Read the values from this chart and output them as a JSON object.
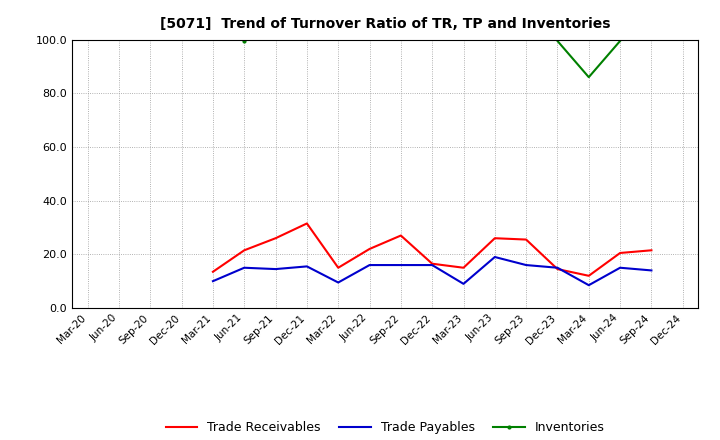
{
  "title": "[5071]  Trend of Turnover Ratio of TR, TP and Inventories",
  "xlabels": [
    "Mar-20",
    "Jun-20",
    "Sep-20",
    "Dec-20",
    "Mar-21",
    "Jun-21",
    "Sep-21",
    "Dec-21",
    "Mar-22",
    "Jun-22",
    "Sep-22",
    "Dec-22",
    "Mar-23",
    "Jun-23",
    "Sep-23",
    "Dec-23",
    "Mar-24",
    "Jun-24",
    "Sep-24",
    "Dec-24"
  ],
  "trade_receivables": [
    null,
    null,
    null,
    null,
    13.5,
    21.5,
    26.0,
    31.5,
    15.0,
    22.0,
    27.0,
    16.5,
    15.0,
    26.0,
    25.5,
    14.5,
    12.0,
    20.5,
    21.5,
    null
  ],
  "trade_payables": [
    null,
    null,
    null,
    null,
    10.0,
    15.0,
    14.5,
    15.5,
    9.5,
    16.0,
    16.0,
    16.0,
    9.0,
    19.0,
    16.0,
    15.0,
    8.5,
    15.0,
    14.0,
    null
  ],
  "inv_segments": [
    {
      "x": [
        5
      ],
      "y": [
        99.5
      ]
    },
    {
      "x": [
        15,
        16,
        17
      ],
      "y": [
        99.5,
        86.0,
        99.5
      ]
    }
  ],
  "ylim": [
    0,
    100
  ],
  "yticks": [
    0.0,
    20.0,
    40.0,
    60.0,
    80.0,
    100.0
  ],
  "color_tr": "#ff0000",
  "color_tp": "#0000cd",
  "color_inv": "#008000",
  "legend_labels": [
    "Trade Receivables",
    "Trade Payables",
    "Inventories"
  ],
  "background_color": "#ffffff",
  "grid_color": "#999999"
}
